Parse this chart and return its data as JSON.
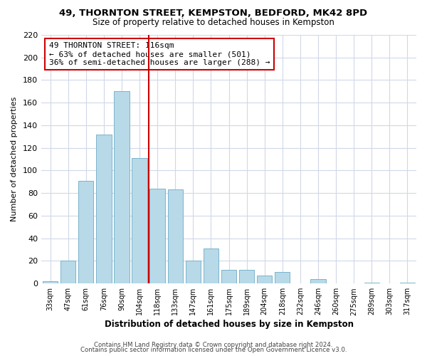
{
  "title": "49, THORNTON STREET, KEMPSTON, BEDFORD, MK42 8PD",
  "subtitle": "Size of property relative to detached houses in Kempston",
  "xlabel": "Distribution of detached houses by size in Kempston",
  "ylabel": "Number of detached properties",
  "bar_labels": [
    "33sqm",
    "47sqm",
    "61sqm",
    "76sqm",
    "90sqm",
    "104sqm",
    "118sqm",
    "133sqm",
    "147sqm",
    "161sqm",
    "175sqm",
    "189sqm",
    "204sqm",
    "218sqm",
    "232sqm",
    "246sqm",
    "260sqm",
    "275sqm",
    "289sqm",
    "303sqm",
    "317sqm"
  ],
  "bar_heights": [
    2,
    20,
    91,
    132,
    170,
    111,
    84,
    83,
    20,
    31,
    12,
    12,
    7,
    10,
    0,
    4,
    0,
    0,
    1,
    0,
    1
  ],
  "bar_color": "#b8d9e8",
  "bar_edge_color": "#7ab4cc",
  "vline_color": "#cc0000",
  "annotation_title": "49 THORNTON STREET: 116sqm",
  "annotation_line1": "← 63% of detached houses are smaller (501)",
  "annotation_line2": "36% of semi-detached houses are larger (288) →",
  "annotation_box_color": "#ffffff",
  "annotation_box_edge_color": "#cc0000",
  "ylim": [
    0,
    220
  ],
  "yticks": [
    0,
    20,
    40,
    60,
    80,
    100,
    120,
    140,
    160,
    180,
    200,
    220
  ],
  "footer1": "Contains HM Land Registry data © Crown copyright and database right 2024.",
  "footer2": "Contains public sector information licensed under the Open Government Licence v3.0.",
  "bg_color": "#ffffff",
  "grid_color": "#d0d8e8"
}
